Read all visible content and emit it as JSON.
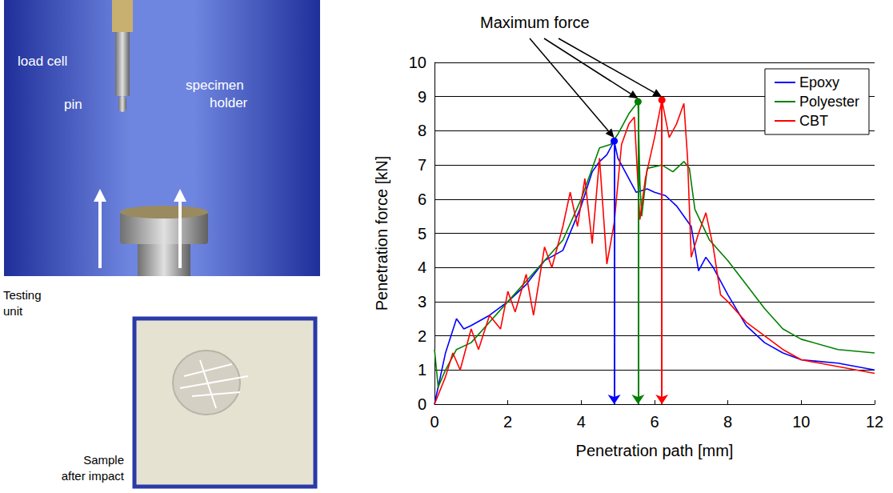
{
  "chart_data": {
    "type": "line",
    "xlabel": "Penetration path [mm]",
    "ylabel": "Penetration force [kN]",
    "xlim": [
      0,
      12
    ],
    "xticks": [
      0,
      2,
      4,
      6,
      8,
      10,
      12
    ],
    "ylim": [
      0,
      10
    ],
    "yticks": [
      0,
      1,
      2,
      3,
      4,
      5,
      6,
      7,
      8,
      9,
      10
    ],
    "grid": "y",
    "legend": "upper right",
    "series": [
      {
        "name": "Epoxy",
        "color": "#0000ff",
        "x": [
          0,
          0.3,
          0.6,
          0.8,
          1.0,
          1.5,
          2.0,
          2.5,
          3.0,
          3.5,
          4.0,
          4.3,
          4.5,
          4.7,
          4.9,
          5.0,
          5.2,
          5.5,
          5.8,
          6.0,
          6.3,
          6.6,
          7.0,
          7.2,
          7.4,
          7.6,
          8.0,
          8.5,
          9.0,
          9.5,
          10.0,
          11.0,
          12.0
        ],
        "values": [
          0,
          1.5,
          2.5,
          2.2,
          2.3,
          2.6,
          3.0,
          3.5,
          4.2,
          4.5,
          5.8,
          6.8,
          7.1,
          7.3,
          7.7,
          7.2,
          6.8,
          6.2,
          6.3,
          6.2,
          6.1,
          5.8,
          5.2,
          3.9,
          4.3,
          4.0,
          3.2,
          2.3,
          1.8,
          1.5,
          1.3,
          1.2,
          1.0
        ]
      },
      {
        "name": "Polyester",
        "color": "#008000",
        "x": [
          0,
          0.1,
          0.3,
          0.6,
          1.0,
          1.5,
          2.0,
          2.5,
          3.0,
          3.5,
          4.0,
          4.5,
          4.8,
          5.0,
          5.3,
          5.55,
          5.6,
          5.65,
          5.8,
          6.2,
          6.5,
          6.8,
          6.95,
          7.1,
          7.5,
          8.0,
          8.5,
          9.0,
          9.5,
          10.0,
          11.0,
          12.0
        ],
        "values": [
          1.6,
          0.5,
          1.0,
          1.6,
          1.8,
          2.4,
          3.0,
          3.6,
          4.2,
          4.8,
          6.0,
          7.5,
          7.6,
          7.9,
          8.5,
          8.85,
          6.5,
          5.5,
          6.9,
          7.0,
          6.8,
          7.1,
          6.9,
          5.7,
          4.8,
          4.2,
          3.5,
          2.8,
          2.2,
          1.9,
          1.6,
          1.5
        ]
      },
      {
        "name": "CBT",
        "color": "#ff0000",
        "x": [
          0,
          0.3,
          0.5,
          0.7,
          1.0,
          1.2,
          1.5,
          1.8,
          2.0,
          2.2,
          2.5,
          2.7,
          3.0,
          3.2,
          3.5,
          3.7,
          3.9,
          4.1,
          4.3,
          4.5,
          4.7,
          4.9,
          5.1,
          5.3,
          5.45,
          5.6,
          5.75,
          6.0,
          6.2,
          6.4,
          6.6,
          6.8,
          6.9,
          7.0,
          7.2,
          7.4,
          7.6,
          7.8,
          8.0,
          8.5,
          9.0,
          9.5,
          10.0,
          11.0,
          12.0
        ],
        "values": [
          0,
          0.8,
          1.5,
          1.0,
          2.2,
          1.6,
          2.6,
          2.2,
          3.3,
          2.7,
          3.8,
          2.6,
          4.6,
          4.0,
          5.2,
          6.2,
          5.2,
          6.6,
          4.7,
          7.2,
          4.1,
          5.3,
          7.6,
          8.2,
          8.4,
          5.4,
          6.6,
          7.8,
          8.9,
          7.8,
          8.2,
          8.8,
          7.2,
          4.3,
          5.0,
          5.6,
          4.6,
          3.2,
          3.0,
          2.4,
          2.0,
          1.6,
          1.3,
          1.1,
          0.9
        ]
      }
    ],
    "annotation": {
      "text": "Maximum force",
      "points": [
        {
          "series": "Epoxy",
          "x": 4.9,
          "y": 7.7
        },
        {
          "series": "Polyester",
          "x": 5.55,
          "y": 8.85
        },
        {
          "series": "CBT",
          "x": 6.2,
          "y": 8.9
        }
      ]
    }
  },
  "photos": [
    {
      "caption": "Testing unit",
      "labels": [
        "load cell",
        "pin",
        "specimen holder"
      ]
    },
    {
      "caption": "Sample after impact"
    }
  ]
}
